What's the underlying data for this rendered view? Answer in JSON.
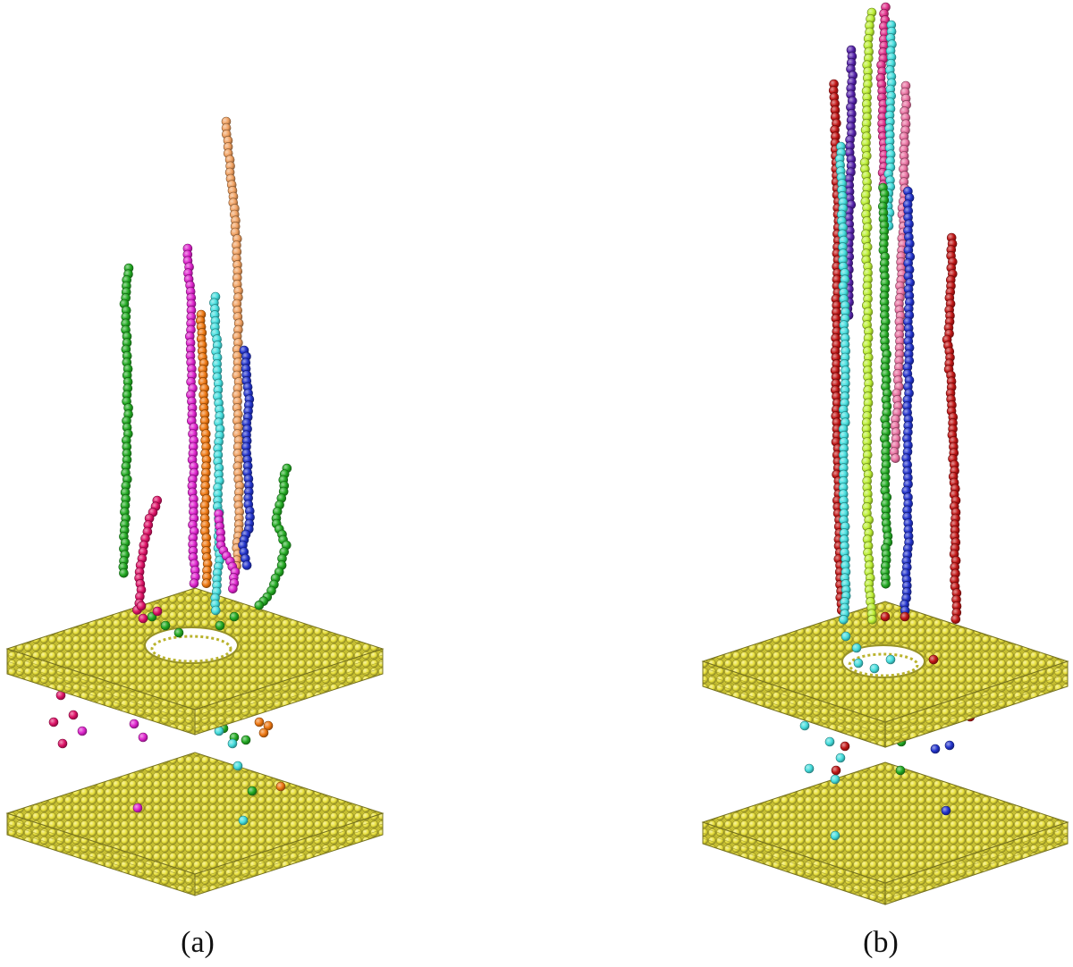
{
  "panels": [
    {
      "id": "a",
      "label": "(a)",
      "colors": {
        "green": "#22aa22",
        "crimson": "#dd1166",
        "magenta": "#dd22cc",
        "orange": "#ee7711",
        "light_orange": "#f0a060",
        "cyan": "#44dddd",
        "blue": "#2233cc"
      }
    },
    {
      "id": "b",
      "label": "(b)",
      "colors": {
        "red": "#c01515",
        "indigo": "#5522aa",
        "lime": "#bbee33",
        "pink": "#e0308a",
        "cyan": "#44dddd",
        "green": "#22aa22",
        "light_pink": "#e870a0",
        "blue": "#2233cc"
      }
    }
  ],
  "slab_color": "#e8e03a"
}
